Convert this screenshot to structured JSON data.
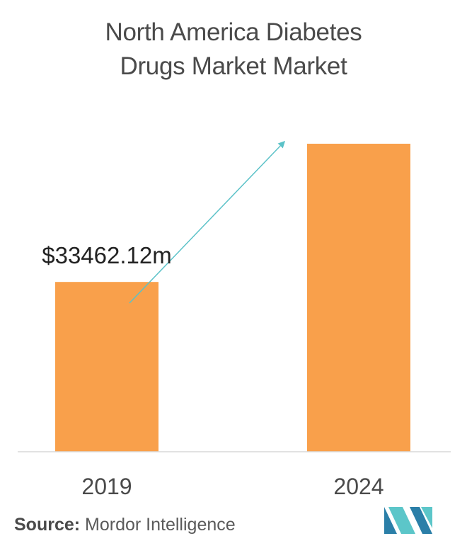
{
  "chart_data": {
    "type": "bar",
    "title_lines": [
      "North America Diabetes",
      "Drugs Market Market"
    ],
    "categories": [
      "2019",
      "2024"
    ],
    "values": [
      33462.12,
      60700
    ],
    "data_labels": [
      "$33462.12m",
      ""
    ],
    "ylim": [
      0,
      66000
    ],
    "grid": false,
    "legend": "none",
    "bar_color": "#f9a04b",
    "arrow_color": "#5bc2c8",
    "axis_color": "#d9d9d9"
  },
  "source": {
    "label": "Source:",
    "text": "Mordor Intelligence"
  },
  "logo": {
    "icon": "mordor-intelligence-logo-icon",
    "colors": [
      "#2b7fa8",
      "#5cc6c9"
    ]
  }
}
